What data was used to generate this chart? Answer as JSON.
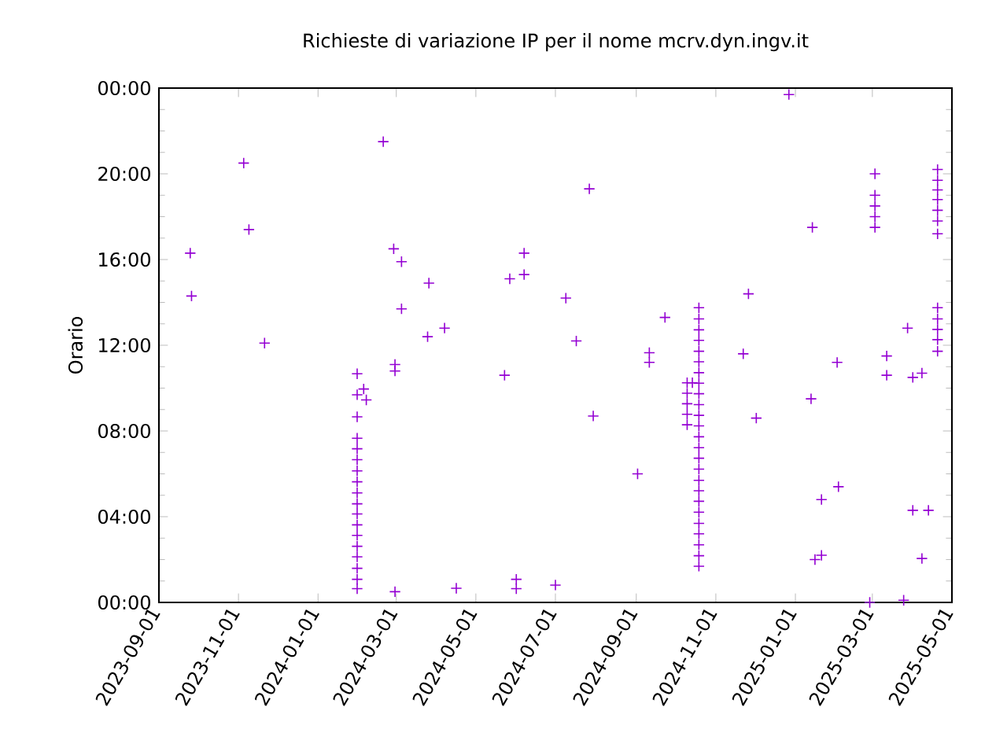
{
  "chart_data": {
    "type": "scatter",
    "title": "Richieste di variazione IP per il nome mcrv.dyn.ingv.it",
    "ylabel": "Orario",
    "marker": "cross",
    "color": "#9400d3",
    "x": [
      "2023-09-25",
      "2023-09-26",
      "2023-11-05",
      "2023-11-09",
      "2023-11-21",
      "2024-02-20",
      "2024-02-28",
      "2024-03-05",
      "2024-03-26",
      "2024-03-05",
      "2024-03-25",
      "2024-02-29",
      "2024-02-29",
      "2024-02-29",
      "2024-01-31",
      "2024-01-31",
      "2024-01-31",
      "2024-01-31",
      "2024-01-31",
      "2024-01-31",
      "2024-01-31",
      "2024-01-31",
      "2024-01-31",
      "2024-01-31",
      "2024-01-31",
      "2024-01-31",
      "2024-01-31",
      "2024-01-31",
      "2024-01-31",
      "2024-01-31",
      "2024-01-31",
      "2024-01-31",
      "2024-02-05",
      "2024-02-07",
      "2024-04-07",
      "2024-04-16",
      "2024-05-23",
      "2024-05-27",
      "2024-06-07",
      "2024-06-07",
      "2024-06-01",
      "2024-06-01",
      "2024-07-01",
      "2024-07-09",
      "2024-07-17",
      "2024-07-27",
      "2024-07-30",
      "2024-09-02",
      "2024-09-11",
      "2024-09-11",
      "2024-09-23",
      "2024-10-10",
      "2024-10-10",
      "2024-10-10",
      "2024-10-10",
      "2024-10-10",
      "2024-10-14",
      "2024-10-19",
      "2024-10-19",
      "2024-10-19",
      "2024-10-19",
      "2024-10-19",
      "2024-10-19",
      "2024-10-19",
      "2024-10-19",
      "2024-10-19",
      "2024-10-19",
      "2024-10-19",
      "2024-10-19",
      "2024-10-19",
      "2024-10-19",
      "2024-10-19",
      "2024-10-19",
      "2024-10-19",
      "2024-10-19",
      "2024-10-19",
      "2024-10-19",
      "2024-10-19",
      "2024-10-19",
      "2024-10-19",
      "2024-10-19",
      "2024-10-19",
      "2024-11-22",
      "2024-11-26",
      "2024-12-02",
      "2024-12-27",
      "2025-01-13",
      "2025-01-14",
      "2025-01-16",
      "2025-01-21",
      "2025-01-21",
      "2025-02-02",
      "2025-02-03",
      "2025-03-03",
      "2025-03-03",
      "2025-03-03",
      "2025-03-03",
      "2025-03-03",
      "2025-02-27",
      "2025-03-12",
      "2025-03-12",
      "2025-03-25",
      "2025-03-28",
      "2025-04-01",
      "2025-04-08",
      "2025-04-01",
      "2025-04-13",
      "2025-04-08",
      "2025-04-20",
      "2025-04-20",
      "2025-04-20",
      "2025-04-20",
      "2025-04-20",
      "2025-04-20",
      "2025-04-20",
      "2025-04-20",
      "2025-04-20",
      "2025-04-20",
      "2025-04-20",
      "2025-04-20"
    ],
    "values": [
      16.3,
      14.3,
      20.5,
      17.4,
      12.1,
      21.5,
      16.5,
      15.9,
      14.9,
      13.7,
      12.4,
      11.1,
      10.8,
      0.5,
      10.67,
      9.69,
      8.66,
      7.66,
      7.17,
      6.66,
      6.14,
      5.63,
      5.11,
      4.6,
      4.13,
      3.62,
      3.13,
      2.62,
      2.13,
      1.59,
      1.08,
      0.64,
      9.96,
      9.45,
      12.8,
      0.66,
      10.6,
      15.1,
      16.3,
      15.3,
      1.08,
      0.64,
      0.81,
      14.2,
      12.2,
      19.3,
      8.7,
      6.0,
      11.65,
      11.2,
      13.3,
      10.25,
      9.76,
      9.27,
      8.78,
      8.29,
      10.25,
      13.75,
      13.23,
      12.72,
      12.23,
      11.72,
      11.23,
      10.72,
      10.23,
      9.74,
      9.23,
      8.73,
      8.24,
      7.73,
      7.22,
      6.73,
      6.22,
      5.7,
      5.21,
      4.72,
      4.21,
      3.69,
      3.2,
      2.69,
      2.18,
      1.69,
      11.6,
      14.4,
      8.6,
      23.7,
      9.5,
      17.5,
      2.0,
      2.2,
      4.8,
      11.2,
      5.4,
      20.0,
      19.0,
      18.5,
      18.0,
      17.5,
      0.0,
      11.5,
      10.6,
      0.1,
      12.8,
      10.5,
      10.7,
      4.3,
      4.3,
      2.05,
      20.2,
      19.7,
      19.25,
      18.8,
      18.3,
      17.8,
      17.2,
      13.75,
      13.23,
      12.74,
      12.26,
      11.72
    ],
    "xlim": [
      "2023-09-01",
      "2025-05-01"
    ],
    "ylim": [
      0,
      24
    ],
    "xticks": [
      {
        "value": "2023-09-01",
        "label": "2023-09-01"
      },
      {
        "value": "2023-11-01",
        "label": "2023-11-01"
      },
      {
        "value": "2024-01-01",
        "label": "2024-01-01"
      },
      {
        "value": "2024-03-01",
        "label": "2024-03-01"
      },
      {
        "value": "2024-05-01",
        "label": "2024-05-01"
      },
      {
        "value": "2024-07-01",
        "label": "2024-07-01"
      },
      {
        "value": "2024-09-01",
        "label": "2024-09-01"
      },
      {
        "value": "2024-11-01",
        "label": "2024-11-01"
      },
      {
        "value": "2025-01-01",
        "label": "2025-01-01"
      },
      {
        "value": "2025-03-01",
        "label": "2025-03-01"
      },
      {
        "value": "2025-05-01",
        "label": "2025-05-01"
      }
    ],
    "yticks": [
      {
        "value": 0,
        "label": "00:00"
      },
      {
        "value": 4,
        "label": "04:00"
      },
      {
        "value": 8,
        "label": "08:00"
      },
      {
        "value": 12,
        "label": "12:00"
      },
      {
        "value": 16,
        "label": "16:00"
      },
      {
        "value": 20,
        "label": "20:00"
      },
      {
        "value": 24,
        "label": "00:00"
      }
    ]
  }
}
